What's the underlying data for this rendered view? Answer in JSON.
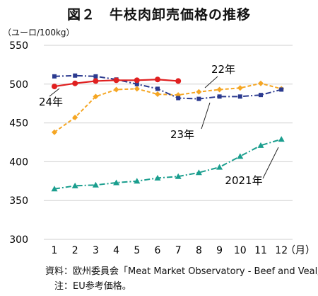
{
  "title": "図２　牛枝肉卸売価格の推移",
  "y_unit_label": "（ユーロ/100kg）",
  "x_unit_label": "（月）",
  "source_note": "資料：欧州委員会「Meat Market Observatory - Beef and Veal」",
  "footnote": "　注：EU参考価格。",
  "colors": {
    "y2024": "#e02020",
    "y2023": "#2b3a8f",
    "y2022": "#f5a623",
    "y2021": "#1a9e8e",
    "grid": "#cfcfcf"
  },
  "chart_data": {
    "type": "line",
    "x": [
      1,
      2,
      3,
      4,
      5,
      6,
      7,
      8,
      9,
      10,
      11,
      12
    ],
    "ylim": [
      300,
      550
    ],
    "yticks": [
      300,
      350,
      400,
      450,
      500,
      550
    ],
    "grid": "horizontal",
    "series": [
      {
        "name": "24年",
        "key": "y2024",
        "style": "solid",
        "marker": "circle",
        "values": [
          497,
          501,
          504,
          505,
          505,
          506,
          504,
          null,
          null,
          null,
          null,
          null
        ]
      },
      {
        "name": "23年",
        "key": "y2023",
        "style": "dashdot",
        "marker": "square",
        "values": [
          510,
          511,
          510,
          506,
          500,
          494,
          482,
          481,
          484,
          484,
          486,
          493
        ]
      },
      {
        "name": "22年",
        "key": "y2022",
        "style": "dashed",
        "marker": "diamond",
        "values": [
          438,
          457,
          484,
          493,
          494,
          487,
          486,
          490,
          493,
          495,
          501,
          494
        ]
      },
      {
        "name": "2021年",
        "key": "y2021",
        "style": "dashdot",
        "marker": "triangle",
        "values": [
          365,
          369,
          370,
          373,
          375,
          379,
          381,
          386,
          393,
          407,
          421,
          429
        ]
      }
    ]
  }
}
